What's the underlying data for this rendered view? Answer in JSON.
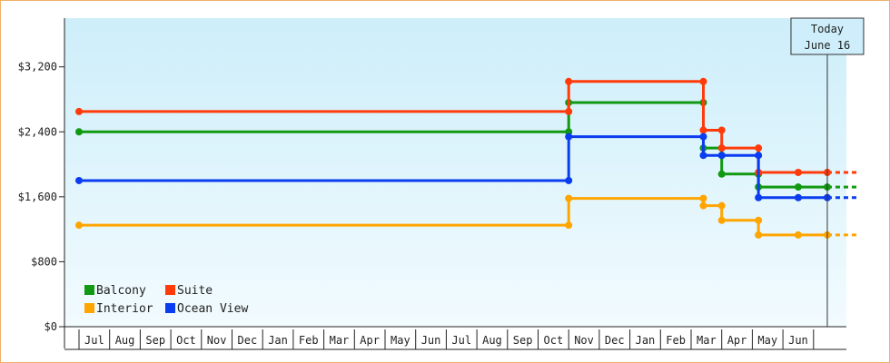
{
  "chart_data": {
    "type": "line",
    "title": "",
    "xlabel": "",
    "ylabel": "",
    "ylim": [
      0,
      3800
    ],
    "yticks": [
      {
        "value": 0,
        "label": "$0"
      },
      {
        "value": 800,
        "label": "$800"
      },
      {
        "value": 1600,
        "label": "$1,600"
      },
      {
        "value": 2400,
        "label": "$2,400"
      },
      {
        "value": 3200,
        "label": "$3,200"
      }
    ],
    "months": [
      "Jul",
      "Aug",
      "Sep",
      "Oct",
      "Nov",
      "Dec",
      "Jan",
      "Feb",
      "Mar",
      "Apr",
      "May",
      "Jun",
      "Jul",
      "Aug",
      "Sep",
      "Oct",
      "Nov",
      "Dec",
      "Jan",
      "Feb",
      "Mar",
      "Apr",
      "May",
      "Jun"
    ],
    "today": {
      "line1": "Today",
      "line2": "June 16",
      "x": 24.45
    },
    "grid": false,
    "legend_position": "bottom-left",
    "series": [
      {
        "name": "Balcony",
        "color": "#119911",
        "points": [
          [
            0,
            2400
          ],
          [
            16.0,
            2400
          ],
          [
            16.0,
            2760
          ],
          [
            20.4,
            2760
          ],
          [
            20.4,
            2200
          ],
          [
            21.0,
            2200
          ],
          [
            21.0,
            1880
          ],
          [
            22.2,
            1880
          ],
          [
            22.2,
            1720
          ],
          [
            23.5,
            1720
          ],
          [
            24.45,
            1720
          ]
        ],
        "forecast": [
          [
            24.45,
            1720
          ],
          [
            25.5,
            1720
          ]
        ]
      },
      {
        "name": "Suite",
        "color": "#ff3b0a",
        "points": [
          [
            0,
            2650
          ],
          [
            16.0,
            2650
          ],
          [
            16.0,
            3020
          ],
          [
            20.4,
            3020
          ],
          [
            20.4,
            2420
          ],
          [
            21.0,
            2420
          ],
          [
            21.0,
            2200
          ],
          [
            22.2,
            2200
          ],
          [
            22.2,
            1900
          ],
          [
            23.5,
            1900
          ],
          [
            24.45,
            1900
          ]
        ],
        "forecast": [
          [
            24.45,
            1900
          ],
          [
            25.5,
            1900
          ]
        ]
      },
      {
        "name": "Interior",
        "color": "#ffa500",
        "points": [
          [
            0,
            1250
          ],
          [
            16.0,
            1250
          ],
          [
            16.0,
            1580
          ],
          [
            20.4,
            1580
          ],
          [
            20.4,
            1490
          ],
          [
            21.0,
            1490
          ],
          [
            21.0,
            1310
          ],
          [
            22.2,
            1310
          ],
          [
            22.2,
            1130
          ],
          [
            23.5,
            1130
          ],
          [
            24.45,
            1130
          ]
        ],
        "forecast": [
          [
            24.45,
            1130
          ],
          [
            25.5,
            1130
          ]
        ]
      },
      {
        "name": "Ocean View",
        "color": "#0a3cf0",
        "points": [
          [
            0,
            1800
          ],
          [
            16.0,
            1800
          ],
          [
            16.0,
            2340
          ],
          [
            20.4,
            2340
          ],
          [
            20.4,
            2110
          ],
          [
            21.0,
            2110
          ],
          [
            21.0,
            2110
          ],
          [
            22.2,
            2110
          ],
          [
            22.2,
            1590
          ],
          [
            23.5,
            1590
          ],
          [
            24.45,
            1590
          ]
        ],
        "forecast": [
          [
            24.45,
            1590
          ],
          [
            25.5,
            1590
          ]
        ]
      }
    ]
  }
}
